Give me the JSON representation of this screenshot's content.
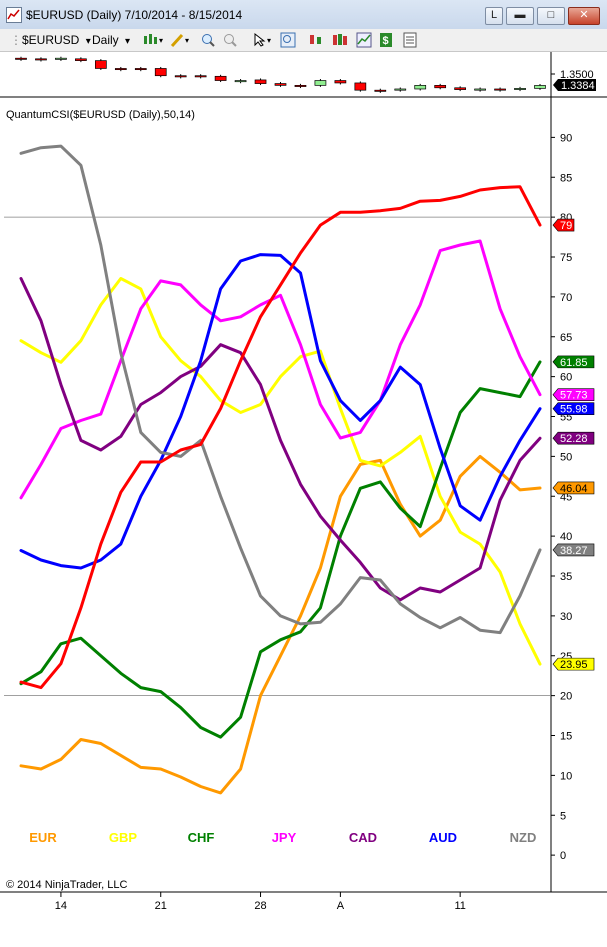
{
  "window": {
    "title": "$EURUSD (Daily)  7/10/2014 - 8/15/2014",
    "btn_l": "L",
    "btn_minimize": "▬",
    "btn_maximize": "□",
    "btn_close": "✕"
  },
  "toolbar": {
    "instrument": "$EURUSD",
    "period": "Daily",
    "dropdown_glyph": "▾"
  },
  "price_panel": {
    "price_label": "1.3500",
    "last_price": "1.3384"
  },
  "indicator": {
    "title": "QuantumCSI($EURUSD (Daily),50,14)"
  },
  "copyright": "© 2014 NinjaTrader, LLC",
  "chart_data": {
    "type": "line",
    "x": [
      "7/10",
      "7/11",
      "7/14",
      "7/15",
      "7/16",
      "7/17",
      "7/18",
      "7/21",
      "7/22",
      "7/23",
      "7/24",
      "7/25",
      "7/28",
      "7/29",
      "7/30",
      "7/31",
      "8/1",
      "8/4",
      "8/5",
      "8/6",
      "8/7",
      "8/8",
      "8/11",
      "8/12",
      "8/13",
      "8/14",
      "8/15"
    ],
    "x_ticks": [
      {
        "label": "14",
        "x": "7/14"
      },
      {
        "label": "21",
        "x": "7/21"
      },
      {
        "label": "28",
        "x": "7/28"
      },
      {
        "label": "A",
        "x": "8/1"
      },
      {
        "label": "11",
        "x": "8/11"
      }
    ],
    "ylim": [
      -5,
      95
    ],
    "yticks": [
      0,
      5,
      10,
      15,
      20,
      25,
      30,
      35,
      40,
      45,
      50,
      55,
      60,
      65,
      70,
      75,
      80,
      85,
      90
    ],
    "reference_lines": [
      20,
      80
    ],
    "grid": false,
    "legend_position": "bottom",
    "series": [
      {
        "name": "EUR",
        "color": "#ff9900",
        "last_label": "46.04",
        "values": [
          11.2,
          10.8,
          12,
          14.5,
          14,
          12.5,
          11,
          10.8,
          9.8,
          8.6,
          7.8,
          10.8,
          20,
          25,
          30,
          36,
          45,
          49,
          49.5,
          44,
          40,
          42,
          47.5,
          50,
          48,
          45.8,
          46.04
        ]
      },
      {
        "name": "GBP",
        "color": "#ffff00",
        "last_label": "23.95",
        "values": [
          64.5,
          63,
          61.8,
          64.5,
          69,
          72.3,
          71,
          65,
          62,
          60,
          57,
          55.5,
          56.5,
          60,
          62.5,
          63.2,
          56,
          49.5,
          48.8,
          50.5,
          52.5,
          45,
          40.5,
          39,
          35.5,
          29,
          23.95
        ]
      },
      {
        "name": "CHF",
        "color": "#008000",
        "last_label": "61.85",
        "values": [
          21.5,
          23,
          26.5,
          27.2,
          25,
          22.8,
          21,
          20.5,
          18.5,
          16,
          14.8,
          17.3,
          25.5,
          27,
          28,
          31,
          40,
          46,
          46.8,
          43.5,
          41.2,
          48.5,
          55.5,
          58.5,
          58,
          57.5,
          61.85
        ]
      },
      {
        "name": "JPY",
        "color": "#ff00ff",
        "last_label": "57.73",
        "values": [
          44.8,
          49,
          53.5,
          54.5,
          55.3,
          62,
          68.5,
          72,
          71.5,
          69,
          67,
          67.5,
          69,
          70.2,
          64,
          56.5,
          52.3,
          53,
          57,
          64,
          69,
          75.8,
          76.5,
          77,
          68.5,
          62.5,
          57.73
        ]
      },
      {
        "name": "CAD",
        "color": "#800080",
        "last_label": "52.28",
        "values": [
          72.3,
          67,
          59,
          52,
          50.8,
          52.5,
          56.5,
          58,
          60,
          61.3,
          64,
          63,
          59,
          52,
          46.5,
          42.5,
          39.5,
          36.7,
          33.5,
          32,
          33.5,
          33,
          34.5,
          36,
          44.5,
          49.5,
          52.28
        ]
      },
      {
        "name": "AUD",
        "color": "#0000ff",
        "last_label": "55.98",
        "values": [
          38.2,
          37,
          36.3,
          36,
          37,
          39,
          45,
          49.5,
          55,
          62,
          71,
          74.5,
          75.3,
          75.2,
          73,
          62,
          57,
          54.5,
          57,
          61.2,
          59,
          51,
          43.8,
          42,
          47.5,
          52,
          55.98
        ]
      },
      {
        "name": "NZD",
        "color": "#808080",
        "last_label": "38.27",
        "values": [
          88,
          88.7,
          88.9,
          86.5,
          76.5,
          63,
          53,
          50.5,
          50,
          52,
          45,
          38.5,
          32.5,
          30,
          29,
          29.2,
          31.5,
          34.8,
          34.5,
          31.5,
          29.8,
          28.5,
          29.8,
          28.2,
          27.9,
          32.5,
          38.27
        ]
      },
      {
        "name": "",
        "color": "#ff0000",
        "last_label": "79",
        "values": [
          21.7,
          21,
          24,
          31,
          39,
          45.5,
          49.3,
          49.3,
          50.8,
          51.5,
          56,
          62,
          67.5,
          71.5,
          75.5,
          79,
          80.6,
          80.6,
          80.8,
          81.1,
          82,
          82.1,
          82.6,
          83.4,
          83.7,
          83.8,
          79
        ]
      }
    ]
  },
  "candles": [
    {
      "o": 1.361,
      "c": 1.36,
      "up": false
    },
    {
      "o": 1.3605,
      "c": 1.36,
      "up": false
    },
    {
      "o": 1.36,
      "c": 1.361,
      "up": true
    },
    {
      "o": 1.3605,
      "c": 1.359,
      "up": false
    },
    {
      "o": 1.359,
      "c": 1.3525,
      "up": false
    },
    {
      "o": 1.3525,
      "c": 1.3525,
      "up": false
    },
    {
      "o": 1.3525,
      "c": 1.352,
      "up": false
    },
    {
      "o": 1.3525,
      "c": 1.3465,
      "up": false
    },
    {
      "o": 1.3465,
      "c": 1.3465,
      "up": false
    },
    {
      "o": 1.3465,
      "c": 1.346,
      "up": false
    },
    {
      "o": 1.346,
      "c": 1.3425,
      "up": false
    },
    {
      "o": 1.3425,
      "c": 1.3425,
      "up": true
    },
    {
      "o": 1.343,
      "c": 1.34,
      "up": false
    },
    {
      "o": 1.34,
      "c": 1.3385,
      "up": false
    },
    {
      "o": 1.3385,
      "c": 1.338,
      "up": false
    },
    {
      "o": 1.3385,
      "c": 1.3425,
      "up": true
    },
    {
      "o": 1.3425,
      "c": 1.3405,
      "up": false
    },
    {
      "o": 1.3405,
      "c": 1.3345,
      "up": false
    },
    {
      "o": 1.3345,
      "c": 1.3345,
      "up": false
    },
    {
      "o": 1.3345,
      "c": 1.3355,
      "up": true
    },
    {
      "o": 1.3355,
      "c": 1.3385,
      "up": true
    },
    {
      "o": 1.3385,
      "c": 1.3365,
      "up": false
    },
    {
      "o": 1.3365,
      "c": 1.335,
      "up": false
    },
    {
      "o": 1.335,
      "c": 1.3355,
      "up": true
    },
    {
      "o": 1.3355,
      "c": 1.3355,
      "up": false
    },
    {
      "o": 1.3355,
      "c": 1.336,
      "up": true
    },
    {
      "o": 1.336,
      "c": 1.3384,
      "up": true
    }
  ],
  "colors": {
    "window_bg": "#ffffff",
    "axis_line": "#000000",
    "ref_line": "#808080",
    "candle_down": "#ff0000",
    "candle_up": "#90ee90"
  }
}
